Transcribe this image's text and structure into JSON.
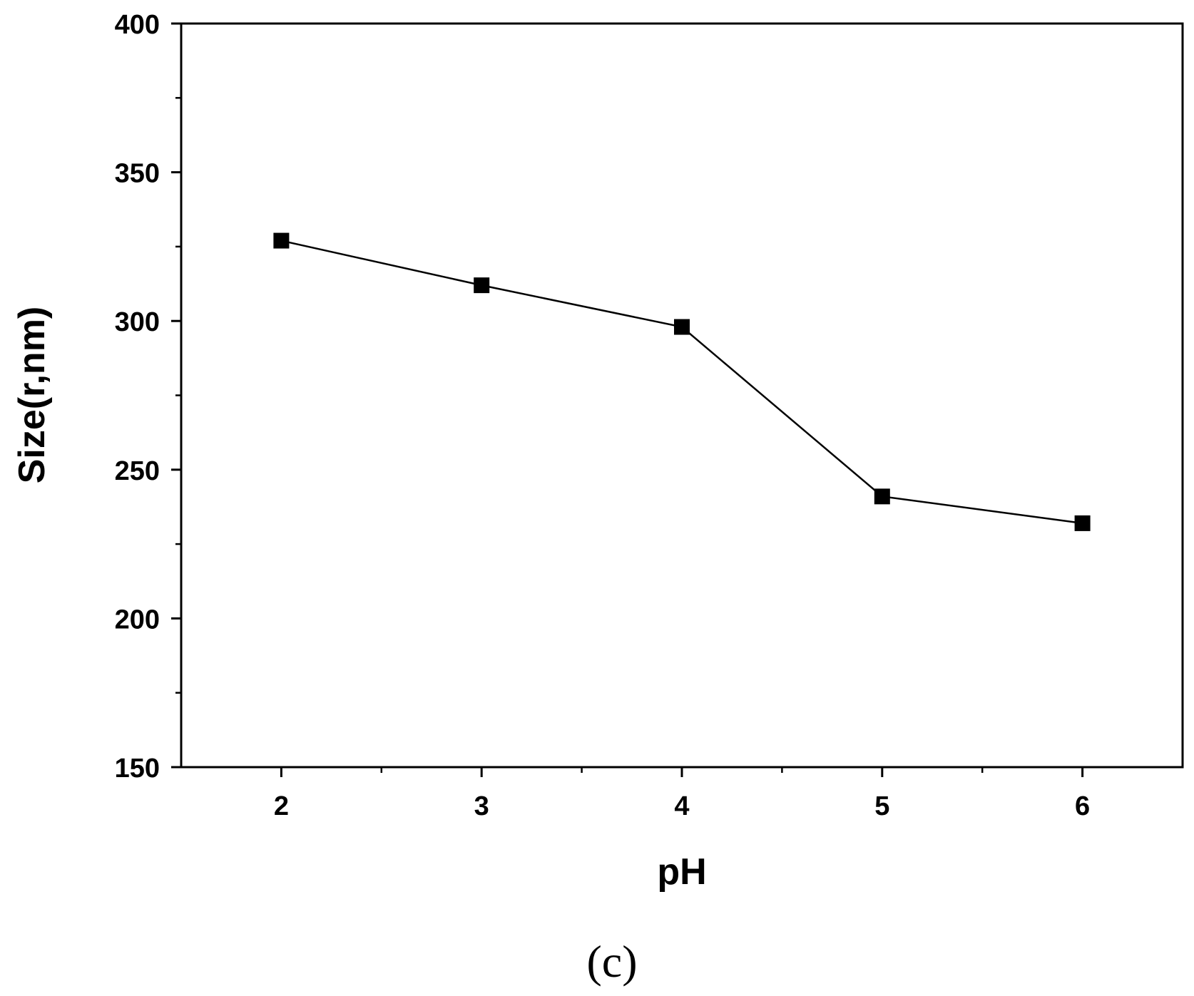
{
  "chart_data": {
    "type": "line",
    "title": "",
    "xlabel": "pH",
    "ylabel": "Size(r,nm)",
    "xlim": [
      1.5,
      6.5
    ],
    "ylim": [
      150,
      400
    ],
    "x_ticks": [
      2,
      3,
      4,
      5,
      6
    ],
    "x_tick_labels": [
      "2",
      "3",
      "4",
      "5",
      "6"
    ],
    "x_minor_ticks": [
      2.5,
      3.5,
      4.5,
      5.5
    ],
    "y_ticks": [
      150,
      200,
      250,
      300,
      350,
      400
    ],
    "y_tick_labels": [
      "150",
      "200",
      "250",
      "300",
      "350",
      "400"
    ],
    "y_minor_ticks": [
      175,
      225,
      275,
      325,
      375
    ],
    "grid": false,
    "legend": "none",
    "marker": "square",
    "color": "#000000",
    "series": [
      {
        "x": [
          2,
          3,
          4,
          5,
          6
        ],
        "y": [
          327,
          312,
          298,
          241,
          232
        ]
      }
    ],
    "panel_label": "(c)"
  }
}
